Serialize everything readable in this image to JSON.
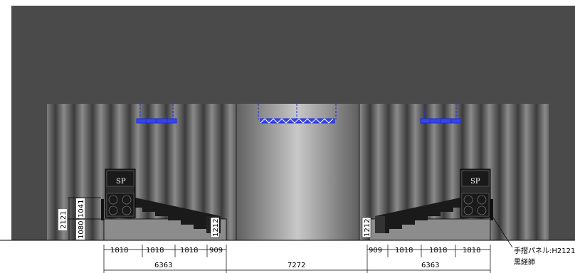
{
  "speaker_label": "SP",
  "left_elevation": {
    "total_height": "2121",
    "upper_height": "1041",
    "lower_height": "1080",
    "step_height": "1212"
  },
  "right_elevation": {
    "step_height": "1212"
  },
  "dimensions_row1": [
    "1818",
    "1818",
    "1818",
    "909",
    "909",
    "1818",
    "1818",
    "1818"
  ],
  "dimensions_row2": [
    "6363",
    "7272",
    "6363"
  ],
  "annotation": {
    "line1": "手摺パネル:H2121",
    "line2": "黒経師"
  },
  "colors": {
    "background_wall": "#4a4a4a",
    "curtain": "#5a5a5a",
    "truss": "#1e2bd6",
    "stand": "#1a1a1a"
  }
}
